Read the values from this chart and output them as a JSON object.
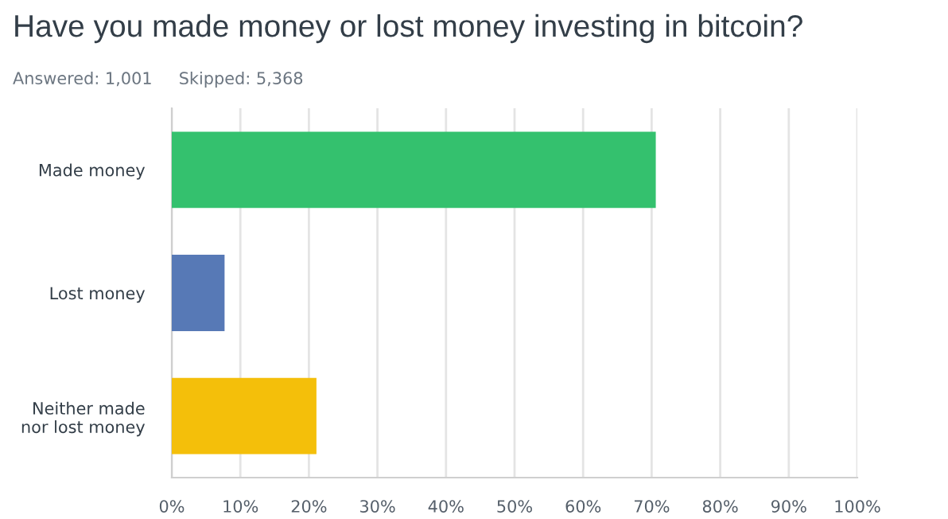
{
  "chart_data": {
    "type": "bar",
    "orientation": "horizontal",
    "title": "Have you made money or lost money investing in bitcoin?",
    "subtitle": "Answered: 1,001     Skipped: 5,368",
    "categories": [
      "Made money",
      "Lost money",
      "Neither made\nnor lost money"
    ],
    "values": [
      70.6,
      7.7,
      21.1
    ],
    "colors": [
      "#34c16e",
      "#5779b6",
      "#f4bf0a"
    ],
    "xlim": [
      0,
      100
    ],
    "xticks": [
      {
        "value": 0,
        "label": "0%"
      },
      {
        "value": 10,
        "label": "10%"
      },
      {
        "value": 20,
        "label": "20%"
      },
      {
        "value": 30,
        "label": "30%"
      },
      {
        "value": 40,
        "label": "40%"
      },
      {
        "value": 50,
        "label": "50%"
      },
      {
        "value": 60,
        "label": "60%"
      },
      {
        "value": 70,
        "label": "70%"
      },
      {
        "value": 80,
        "label": "80%"
      },
      {
        "value": 90,
        "label": "90%"
      },
      {
        "value": 100,
        "label": "100%"
      }
    ],
    "grid": "x",
    "legend": false
  }
}
